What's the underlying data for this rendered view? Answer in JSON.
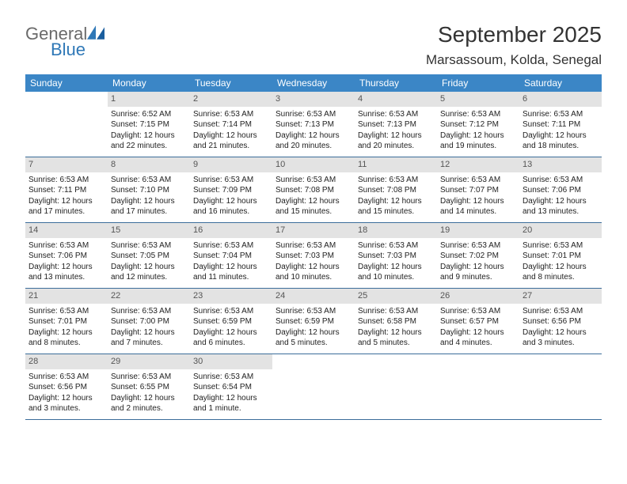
{
  "logo": {
    "word1": "General",
    "word2": "Blue"
  },
  "title": "September 2025",
  "location": "Marsassoum, Kolda, Senegal",
  "colors": {
    "header_bg": "#3b86c6",
    "header_text": "#ffffff",
    "daynum_bg": "#e3e3e3",
    "daynum_text": "#555555",
    "week_border": "#3b6d9a",
    "body_text": "#222222",
    "logo_gray": "#6a6a6a",
    "logo_blue": "#2f78b7"
  },
  "days_of_week": [
    "Sunday",
    "Monday",
    "Tuesday",
    "Wednesday",
    "Thursday",
    "Friday",
    "Saturday"
  ],
  "weeks": [
    [
      {
        "n": "",
        "sr": "",
        "ss": "",
        "dl": ""
      },
      {
        "n": "1",
        "sr": "Sunrise: 6:52 AM",
        "ss": "Sunset: 7:15 PM",
        "dl": "Daylight: 12 hours and 22 minutes."
      },
      {
        "n": "2",
        "sr": "Sunrise: 6:53 AM",
        "ss": "Sunset: 7:14 PM",
        "dl": "Daylight: 12 hours and 21 minutes."
      },
      {
        "n": "3",
        "sr": "Sunrise: 6:53 AM",
        "ss": "Sunset: 7:13 PM",
        "dl": "Daylight: 12 hours and 20 minutes."
      },
      {
        "n": "4",
        "sr": "Sunrise: 6:53 AM",
        "ss": "Sunset: 7:13 PM",
        "dl": "Daylight: 12 hours and 20 minutes."
      },
      {
        "n": "5",
        "sr": "Sunrise: 6:53 AM",
        "ss": "Sunset: 7:12 PM",
        "dl": "Daylight: 12 hours and 19 minutes."
      },
      {
        "n": "6",
        "sr": "Sunrise: 6:53 AM",
        "ss": "Sunset: 7:11 PM",
        "dl": "Daylight: 12 hours and 18 minutes."
      }
    ],
    [
      {
        "n": "7",
        "sr": "Sunrise: 6:53 AM",
        "ss": "Sunset: 7:11 PM",
        "dl": "Daylight: 12 hours and 17 minutes."
      },
      {
        "n": "8",
        "sr": "Sunrise: 6:53 AM",
        "ss": "Sunset: 7:10 PM",
        "dl": "Daylight: 12 hours and 17 minutes."
      },
      {
        "n": "9",
        "sr": "Sunrise: 6:53 AM",
        "ss": "Sunset: 7:09 PM",
        "dl": "Daylight: 12 hours and 16 minutes."
      },
      {
        "n": "10",
        "sr": "Sunrise: 6:53 AM",
        "ss": "Sunset: 7:08 PM",
        "dl": "Daylight: 12 hours and 15 minutes."
      },
      {
        "n": "11",
        "sr": "Sunrise: 6:53 AM",
        "ss": "Sunset: 7:08 PM",
        "dl": "Daylight: 12 hours and 15 minutes."
      },
      {
        "n": "12",
        "sr": "Sunrise: 6:53 AM",
        "ss": "Sunset: 7:07 PM",
        "dl": "Daylight: 12 hours and 14 minutes."
      },
      {
        "n": "13",
        "sr": "Sunrise: 6:53 AM",
        "ss": "Sunset: 7:06 PM",
        "dl": "Daylight: 12 hours and 13 minutes."
      }
    ],
    [
      {
        "n": "14",
        "sr": "Sunrise: 6:53 AM",
        "ss": "Sunset: 7:06 PM",
        "dl": "Daylight: 12 hours and 13 minutes."
      },
      {
        "n": "15",
        "sr": "Sunrise: 6:53 AM",
        "ss": "Sunset: 7:05 PM",
        "dl": "Daylight: 12 hours and 12 minutes."
      },
      {
        "n": "16",
        "sr": "Sunrise: 6:53 AM",
        "ss": "Sunset: 7:04 PM",
        "dl": "Daylight: 12 hours and 11 minutes."
      },
      {
        "n": "17",
        "sr": "Sunrise: 6:53 AM",
        "ss": "Sunset: 7:03 PM",
        "dl": "Daylight: 12 hours and 10 minutes."
      },
      {
        "n": "18",
        "sr": "Sunrise: 6:53 AM",
        "ss": "Sunset: 7:03 PM",
        "dl": "Daylight: 12 hours and 10 minutes."
      },
      {
        "n": "19",
        "sr": "Sunrise: 6:53 AM",
        "ss": "Sunset: 7:02 PM",
        "dl": "Daylight: 12 hours and 9 minutes."
      },
      {
        "n": "20",
        "sr": "Sunrise: 6:53 AM",
        "ss": "Sunset: 7:01 PM",
        "dl": "Daylight: 12 hours and 8 minutes."
      }
    ],
    [
      {
        "n": "21",
        "sr": "Sunrise: 6:53 AM",
        "ss": "Sunset: 7:01 PM",
        "dl": "Daylight: 12 hours and 8 minutes."
      },
      {
        "n": "22",
        "sr": "Sunrise: 6:53 AM",
        "ss": "Sunset: 7:00 PM",
        "dl": "Daylight: 12 hours and 7 minutes."
      },
      {
        "n": "23",
        "sr": "Sunrise: 6:53 AM",
        "ss": "Sunset: 6:59 PM",
        "dl": "Daylight: 12 hours and 6 minutes."
      },
      {
        "n": "24",
        "sr": "Sunrise: 6:53 AM",
        "ss": "Sunset: 6:59 PM",
        "dl": "Daylight: 12 hours and 5 minutes."
      },
      {
        "n": "25",
        "sr": "Sunrise: 6:53 AM",
        "ss": "Sunset: 6:58 PM",
        "dl": "Daylight: 12 hours and 5 minutes."
      },
      {
        "n": "26",
        "sr": "Sunrise: 6:53 AM",
        "ss": "Sunset: 6:57 PM",
        "dl": "Daylight: 12 hours and 4 minutes."
      },
      {
        "n": "27",
        "sr": "Sunrise: 6:53 AM",
        "ss": "Sunset: 6:56 PM",
        "dl": "Daylight: 12 hours and 3 minutes."
      }
    ],
    [
      {
        "n": "28",
        "sr": "Sunrise: 6:53 AM",
        "ss": "Sunset: 6:56 PM",
        "dl": "Daylight: 12 hours and 3 minutes."
      },
      {
        "n": "29",
        "sr": "Sunrise: 6:53 AM",
        "ss": "Sunset: 6:55 PM",
        "dl": "Daylight: 12 hours and 2 minutes."
      },
      {
        "n": "30",
        "sr": "Sunrise: 6:53 AM",
        "ss": "Sunset: 6:54 PM",
        "dl": "Daylight: 12 hours and 1 minute."
      },
      {
        "n": "",
        "sr": "",
        "ss": "",
        "dl": ""
      },
      {
        "n": "",
        "sr": "",
        "ss": "",
        "dl": ""
      },
      {
        "n": "",
        "sr": "",
        "ss": "",
        "dl": ""
      },
      {
        "n": "",
        "sr": "",
        "ss": "",
        "dl": ""
      }
    ]
  ]
}
